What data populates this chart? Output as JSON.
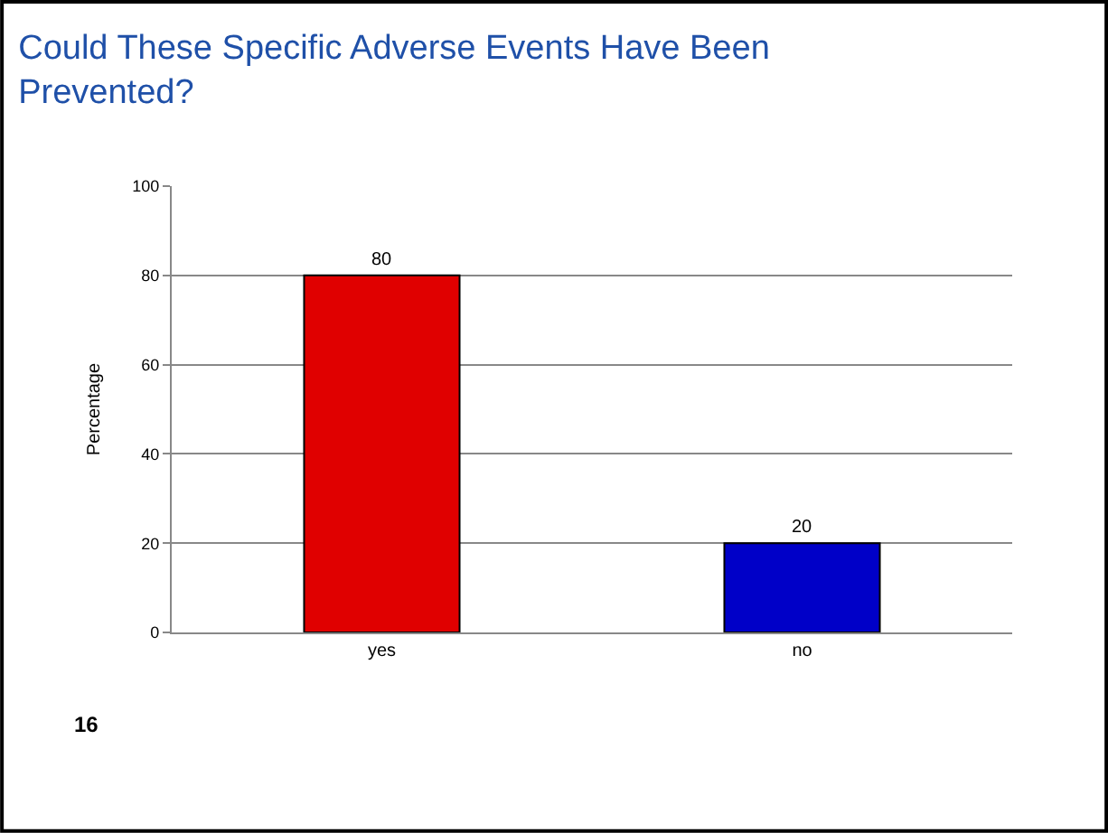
{
  "chart_data": {
    "type": "bar",
    "title": "Could These Specific Adverse Events Have Been Prevented?",
    "ylabel": "Percentage",
    "categories": [
      "yes",
      "no"
    ],
    "values": [
      80,
      20
    ],
    "colors": [
      "#e00000",
      "#0000c8"
    ],
    "ylim": [
      0,
      100
    ],
    "yticks": [
      0,
      20,
      40,
      60,
      80,
      100
    ],
    "grid": "y",
    "data_labels": true,
    "legend": false,
    "annotations": [
      "16"
    ]
  }
}
